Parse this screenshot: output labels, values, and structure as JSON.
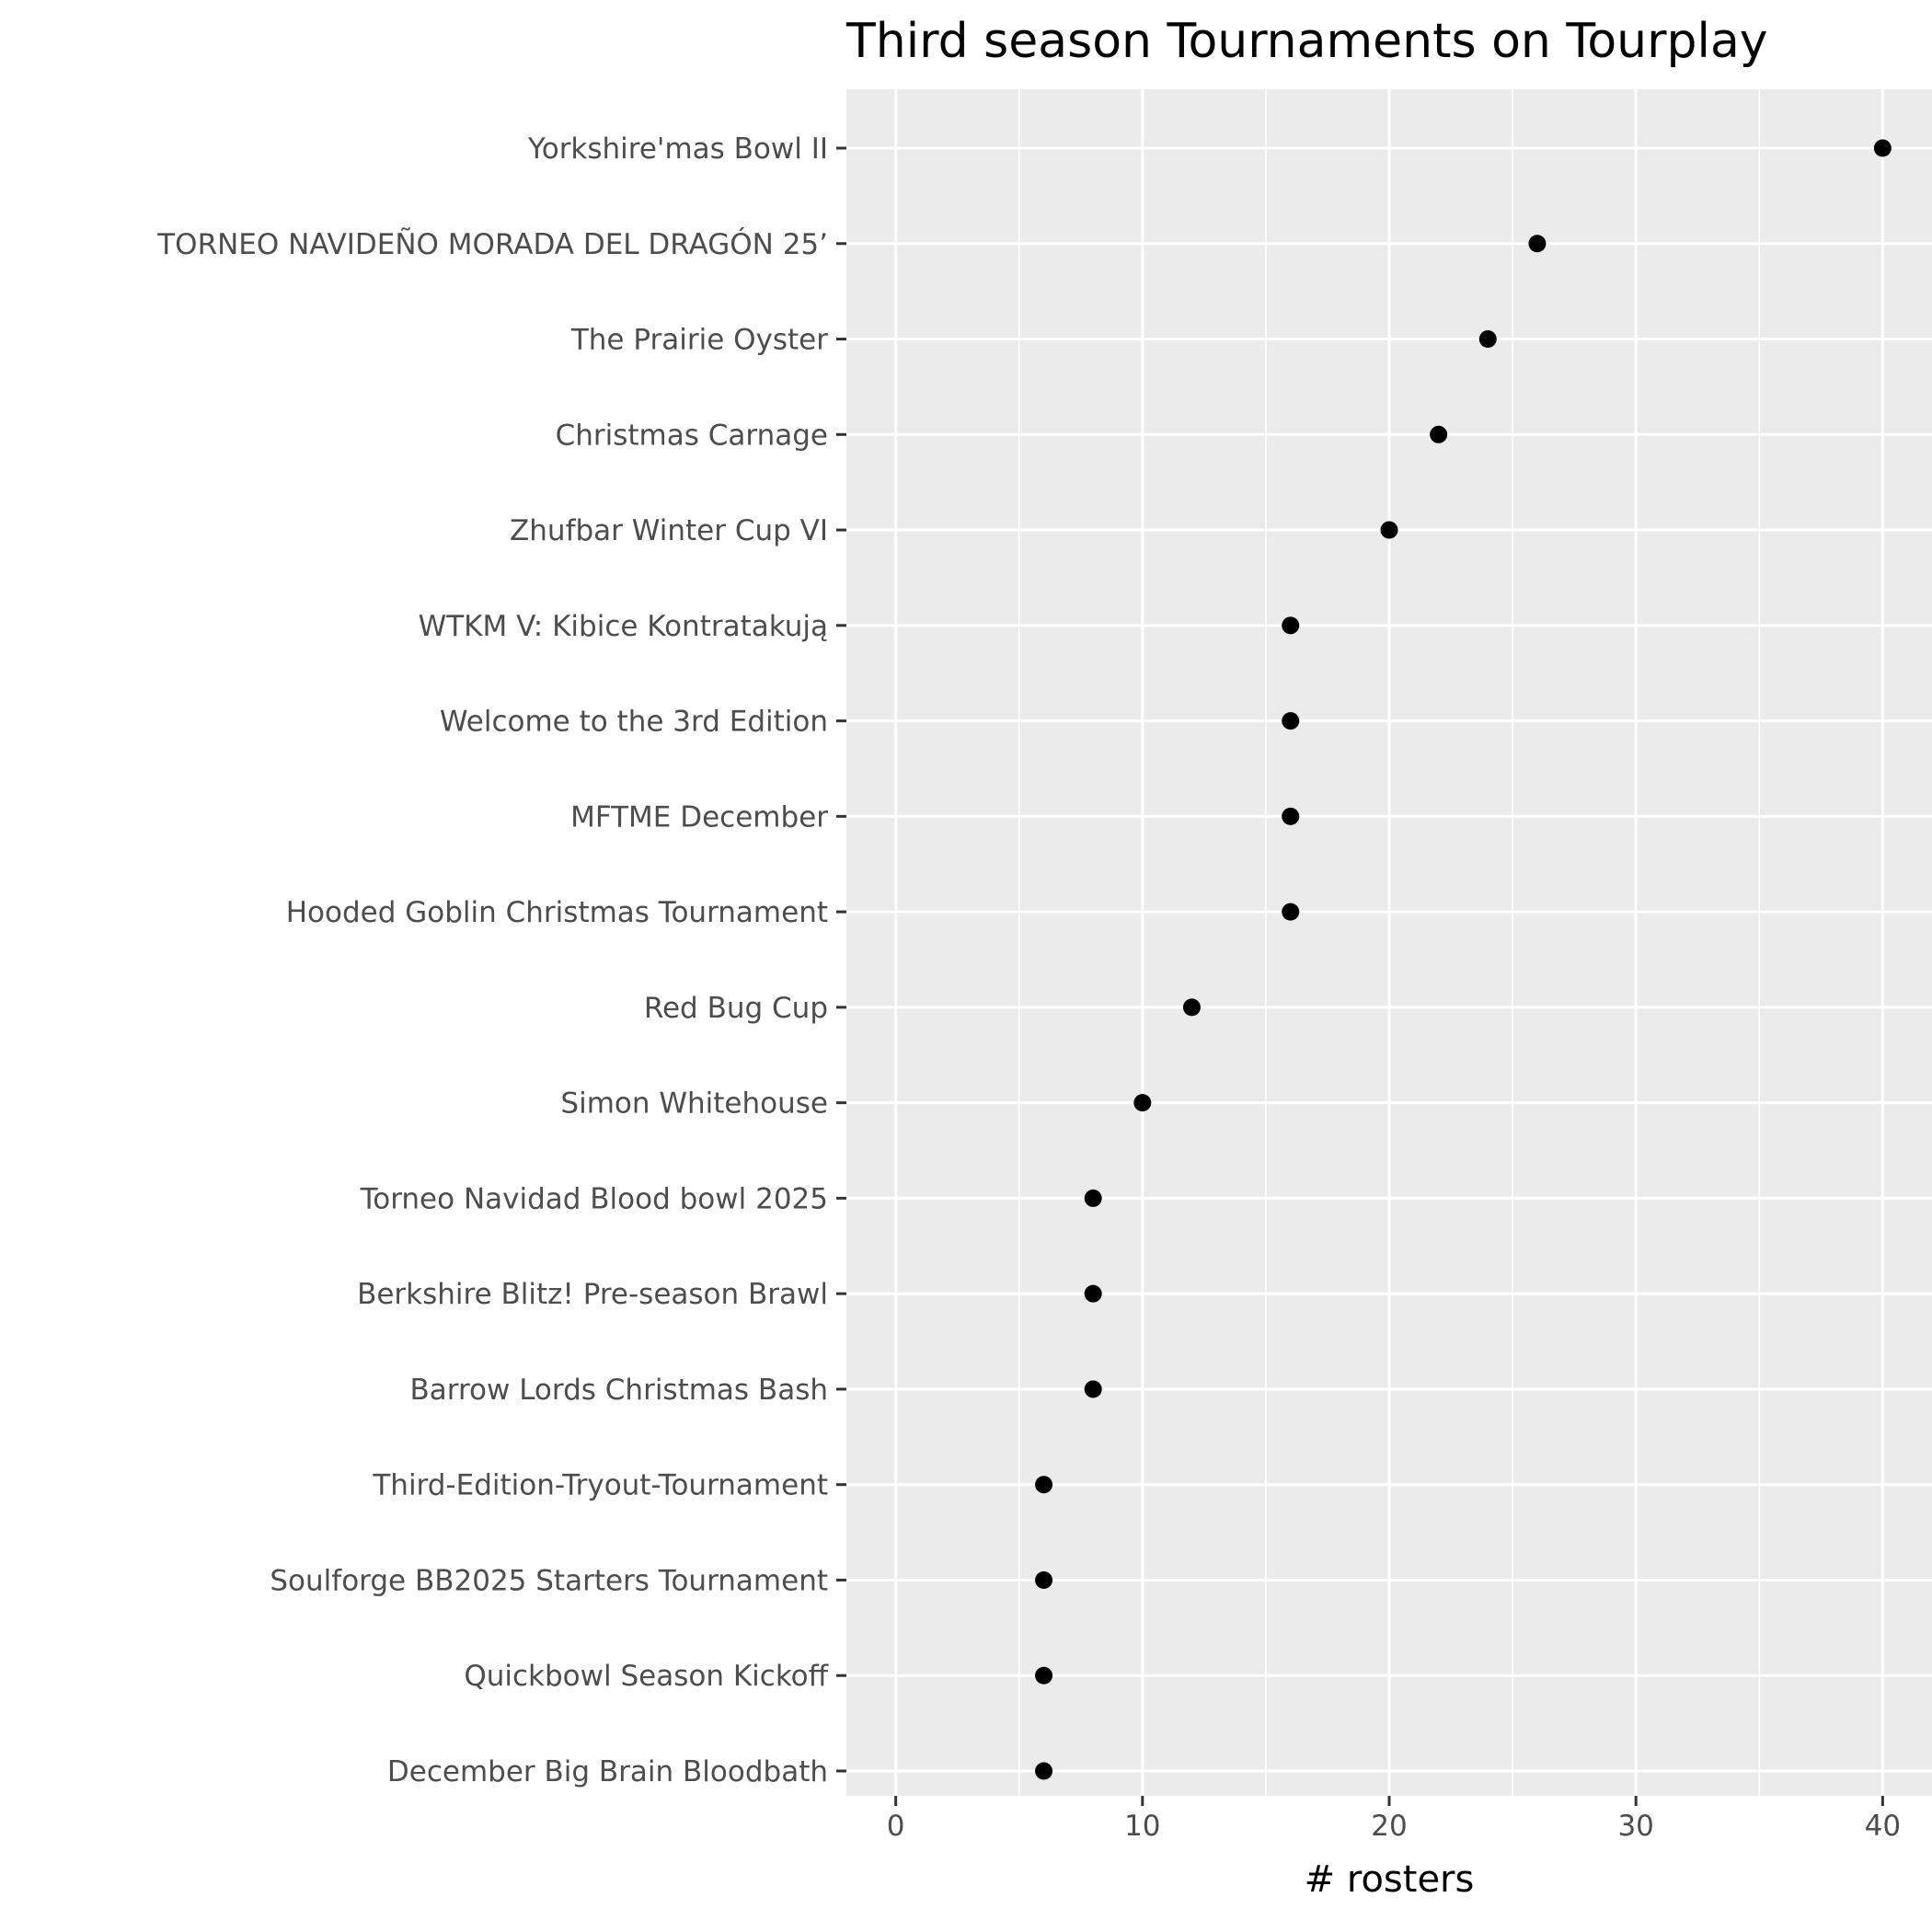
{
  "chart_data": {
    "type": "scatter",
    "title": "Third season Tournaments on Tourplay",
    "xlabel": "# rosters",
    "ylabel": "",
    "xlim": [
      -2,
      42
    ],
    "x_ticks": [
      0,
      10,
      20,
      30,
      40
    ],
    "x_minor_ticks": [
      5,
      15,
      25,
      35
    ],
    "grid": true,
    "legend": "none",
    "colors": {
      "panel_background": "#ebebeb",
      "grid": "#ffffff",
      "point": "#000000",
      "tick_label": "#4d4d4d",
      "tick_mark": "#333333"
    },
    "categories": [
      "Yorkshire'mas Bowl II",
      "TORNEO NAVIDEÑO MORADA DEL DRAGÓN 25’",
      "The Prairie Oyster",
      "Christmas Carnage",
      "Zhufbar Winter Cup VI ",
      "WTKM V: Kibice Kontratakują",
      "Welcome to the 3rd Edition",
      "MFTME December",
      "Hooded Goblin Christmas Tournament",
      "Red Bug Cup",
      "Simon Whitehouse",
      "Torneo Navidad Blood bowl 2025",
      "Berkshire Blitz! Pre-season Brawl",
      "Barrow Lords Christmas Bash",
      "Third-Edition-Tryout-Tournament",
      "Soulforge BB2025 Starters Tournament",
      "Quickbowl Season Kickoff",
      "December Big Brain Bloodbath"
    ],
    "values": [
      40,
      26,
      24,
      22,
      20,
      16,
      16,
      16,
      16,
      12,
      10,
      8,
      8,
      8,
      6,
      6,
      6,
      6
    ]
  }
}
